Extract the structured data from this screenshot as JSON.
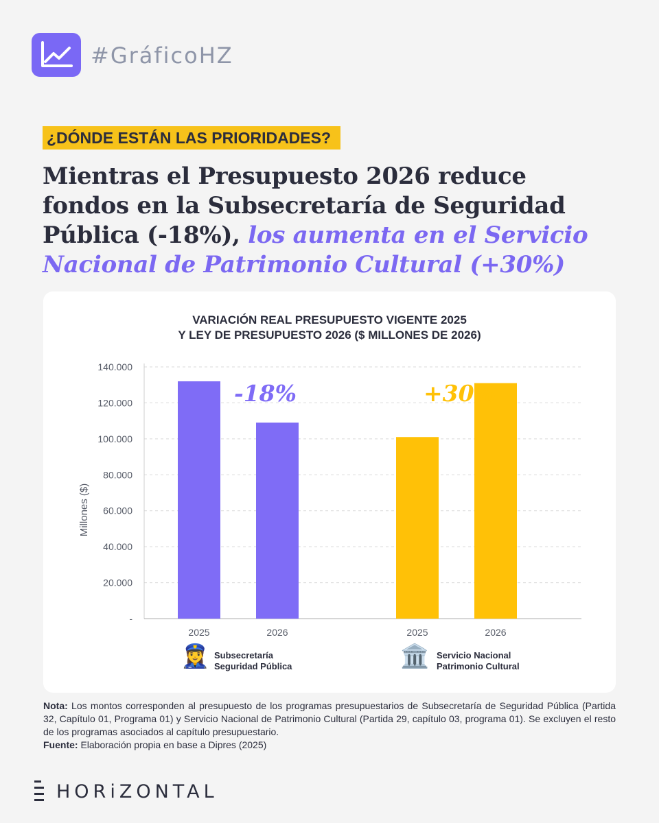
{
  "header": {
    "hashtag": "#GráficoHZ",
    "kicker": "¿DÓNDE ESTÁN LAS PRIORIDADES?",
    "headline_plain": "Mientras el Presupuesto 2026 reduce fondos en la Subsecretaría de Seguridad Pública (-18%),",
    "headline_highlight": "los aumenta en el Servicio Nacional de Patrimonio Cultural (+30%)"
  },
  "colors": {
    "purple": "#7f6cf6",
    "yellow": "#ffc107",
    "text": "#2b2d3c",
    "grid": "#d9d9d9"
  },
  "chart_data": {
    "type": "bar",
    "title_line1": "VARIACIÓN REAL PRESUPUESTO VIGENTE 2025",
    "title_line2": "Y LEY DE PRESUPUESTO 2026 ($ MILLONES DE 2026)",
    "ylabel": "Millones ($)",
    "ylim": [
      0,
      140000
    ],
    "yticks": [
      0,
      20000,
      40000,
      60000,
      80000,
      100000,
      120000,
      140000
    ],
    "ytick_labels": [
      "-",
      "20.000",
      "40.000",
      "60.000",
      "80.000",
      "100.000",
      "120.000",
      "140.000"
    ],
    "grid": true,
    "groups": [
      {
        "name": "Subsecretaría Seguridad Pública",
        "label_line1": "Subsecretaría",
        "label_line2": "Seguridad Pública",
        "icon": "police-officer-emoji",
        "icon_glyph": "👮‍♀️",
        "color": "#7f6cf6",
        "categories": [
          "2025",
          "2026"
        ],
        "values": [
          132000,
          109000
        ],
        "change_label": "-18%"
      },
      {
        "name": "Servicio Nacional Patrimonio Cultural",
        "label_line1": "Servicio Nacional",
        "label_line2": "Patrimonio Cultural",
        "icon": "classical-building-emoji",
        "icon_glyph": "🏛️",
        "color": "#ffc107",
        "categories": [
          "2025",
          "2026"
        ],
        "values": [
          101000,
          131000
        ],
        "change_label": "+30%"
      }
    ]
  },
  "note": {
    "nota_label": "Nota:",
    "nota_text": " Los montos corresponden al presupuesto de los programas presupuestarios de Subsecretaría de Seguridad Pública (Partida 32, Capítulo 01, Programa 01) y Servicio Nacional de Patrimonio Cultural (Partida 29, capítulo 03, programa 01). Se excluyen el resto de los programas asociados al capítulo presupuestario.",
    "fuente_label": "Fuente:",
    "fuente_text": " Elaboración propia en base a Dipres (2025)"
  },
  "brand": {
    "name": "HORiZONTAL"
  }
}
